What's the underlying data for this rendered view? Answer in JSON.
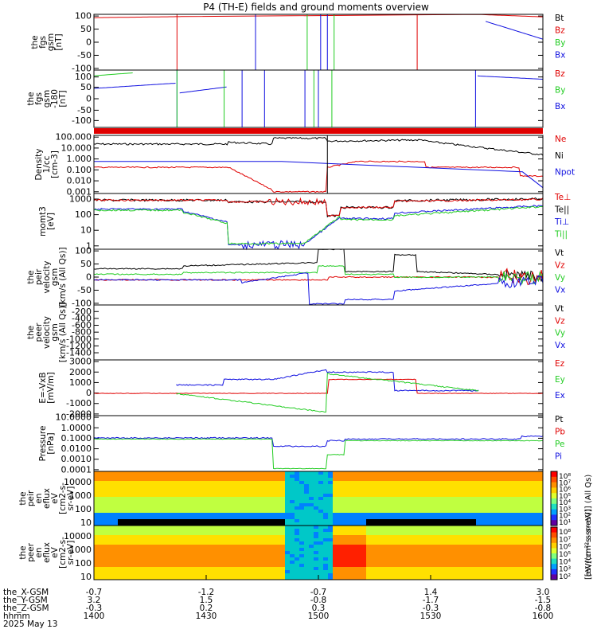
{
  "title": "P4 (TH-E) fields and ground moments overview",
  "colors": {
    "black": "#000000",
    "red": "#e00000",
    "green": "#22cc22",
    "blue": "#1010e0",
    "darkred": "#cc0000"
  },
  "chart_data": {
    "type": "line",
    "title": "P4 (TH-E) fields and ground moments overview",
    "x_axis": {
      "xlim": [
        1400,
        1600
      ],
      "ticks": [
        1400,
        1430,
        1500,
        1530,
        1600
      ],
      "rows": [
        {
          "label": "the_X-GSM",
          "values": [
            "-0.7",
            "-1.2",
            "-0.7",
            "1.4",
            "3.0"
          ]
        },
        {
          "label": "the_Y-GSM",
          "values": [
            "3.2",
            "1.5",
            "-0.8",
            "-1.7",
            "-1.5"
          ]
        },
        {
          "label": "the_Z-GSM",
          "values": [
            "-0.3",
            "0.2",
            "0.3",
            "-0.3",
            "-0.8"
          ]
        },
        {
          "label": "hhmm",
          "values": [
            "1400",
            "1430",
            "1500",
            "1530",
            "1600"
          ]
        }
      ],
      "date": "2025 May 13"
    },
    "panels": [
      {
        "id": "fgs_gsm",
        "ylabel": [
          "the",
          "fgs",
          "gsm",
          "[nT]"
        ],
        "ylim": [
          -100,
          100
        ],
        "yticks": [
          "100",
          "50",
          "0",
          "-50",
          "-100"
        ],
        "legend": [
          {
            "name": "Bt",
            "color": "#000000"
          },
          {
            "name": "Bz",
            "color": "#e00000"
          },
          {
            "name": "By",
            "color": "#22cc22"
          },
          {
            "name": "Bx",
            "color": "#1010e0"
          }
        ]
      },
      {
        "id": "fgs_gsm_filtered",
        "ylabel": [
          "the",
          "fgs",
          "gsm",
          "-180",
          "[nT]"
        ],
        "ylim": [
          -120,
          120
        ],
        "yticks": [
          "100",
          "50",
          "0",
          "-50",
          "-100"
        ],
        "legend": [
          {
            "name": "Bz",
            "color": "#e00000"
          },
          {
            "name": "By",
            "color": "#22cc22"
          },
          {
            "name": "Bx",
            "color": "#1010e0"
          }
        ]
      },
      {
        "id": "density",
        "ylabel": [
          "Density",
          "1/cc",
          "[cm-3]"
        ],
        "log": true,
        "ylim": [
          0.001,
          100
        ],
        "yticks": [
          "100.000",
          "10.000",
          "1.000",
          "0.100",
          "0.010",
          "0.001"
        ],
        "legend": [
          {
            "name": "Ne",
            "color": "#e00000"
          },
          {
            "name": "Ni",
            "color": "#000000"
          },
          {
            "name": "Npot",
            "color": "#1010e0"
          }
        ]
      },
      {
        "id": "temperature",
        "ylabel": [
          "momt3",
          "[eV]"
        ],
        "log": true,
        "ylim": [
          1,
          3000
        ],
        "yticks": [
          "1000",
          "100",
          "10",
          "1"
        ],
        "legend": [
          {
            "name": "Te⊥",
            "color": "#e00000"
          },
          {
            "name": "Te||",
            "color": "#000000"
          },
          {
            "name": "Ti⊥",
            "color": "#1010e0"
          },
          {
            "name": "Ti||",
            "color": "#22cc22"
          }
        ]
      },
      {
        "id": "peir_velocity",
        "ylabel": [
          "the",
          "peir",
          "velocity",
          "gsm",
          "[km/s (All Qs)]"
        ],
        "ylim": [
          -100,
          100
        ],
        "yticks": [
          "100",
          "50",
          "0",
          "-50",
          "-100"
        ],
        "legend": [
          {
            "name": "Vt",
            "color": "#000000"
          },
          {
            "name": "Vz",
            "color": "#e00000"
          },
          {
            "name": "Vy",
            "color": "#22cc22"
          },
          {
            "name": "Vx",
            "color": "#1010e0"
          }
        ]
      },
      {
        "id": "peer_velocity",
        "ylabel": [
          "the",
          "peer",
          "velocity",
          "gsm",
          "[km/s (All Qs)]"
        ],
        "ylim": [
          -1500,
          0
        ],
        "yticks": [
          "-200",
          "-400",
          "-600",
          "-800",
          "-1000",
          "-1200",
          "-1400"
        ],
        "legend": [
          {
            "name": "Vt",
            "color": "#000000"
          },
          {
            "name": "Vz",
            "color": "#e00000"
          },
          {
            "name": "Vy",
            "color": "#22cc22"
          },
          {
            "name": "Vx",
            "color": "#1010e0"
          }
        ]
      },
      {
        "id": "efield",
        "ylabel": [
          "E=-VxB",
          "[mV/m]"
        ],
        "ylim": [
          -2000,
          3000
        ],
        "yticks": [
          "3000",
          "2000",
          "1000",
          "0",
          "-1000",
          "-2000"
        ],
        "legend": [
          {
            "name": "Ez",
            "color": "#e00000"
          },
          {
            "name": "Ey",
            "color": "#22cc22"
          },
          {
            "name": "Ex",
            "color": "#1010e0"
          }
        ]
      },
      {
        "id": "pressure",
        "ylabel": [
          "Pressure",
          "[nPa]"
        ],
        "log": true,
        "ylim": [
          0.0001,
          10
        ],
        "yticks": [
          "10.0000",
          "1.0000",
          "0.1000",
          "0.0100",
          "0.0010",
          "0.0001"
        ],
        "legend": [
          {
            "name": "Pt",
            "color": "#000000"
          },
          {
            "name": "Pb",
            "color": "#e00000"
          },
          {
            "name": "Pe",
            "color": "#22cc22"
          },
          {
            "name": "Pi",
            "color": "#1010e0"
          }
        ]
      },
      {
        "id": "peir_eflux",
        "type": "heatmap",
        "ylabel": [
          "the",
          "peir",
          "en",
          "eflux",
          "eV",
          "[cm2-s-",
          "sr-eV]"
        ],
        "log": true,
        "ylim": [
          10,
          20000
        ],
        "yticks": [
          "10000",
          "1000",
          "100",
          "10"
        ]
      },
      {
        "id": "peer_eflux",
        "type": "heatmap",
        "ylabel": [
          "the",
          "peer",
          "en",
          "eflux",
          "eV",
          "[cm2-s-",
          "sr-eV]"
        ],
        "log": true,
        "ylim": [
          10,
          20000
        ],
        "yticks": [
          "10000",
          "1000",
          "100",
          "10"
        ]
      }
    ],
    "colorbar": {
      "ticks": [
        "10⁸",
        "10⁷",
        "10⁶",
        "10⁵",
        "10⁴",
        "10³",
        "10²",
        "10¹"
      ],
      "label": "[eV/(cm²-s-sr-eV)] (All Qs)",
      "ticks2": [
        "10⁸",
        "10⁷",
        "10⁶",
        "10⁵",
        "10⁴",
        "10³",
        "10²"
      ],
      "label2": "[eV/(cm²-s-sr-eV)]"
    }
  }
}
